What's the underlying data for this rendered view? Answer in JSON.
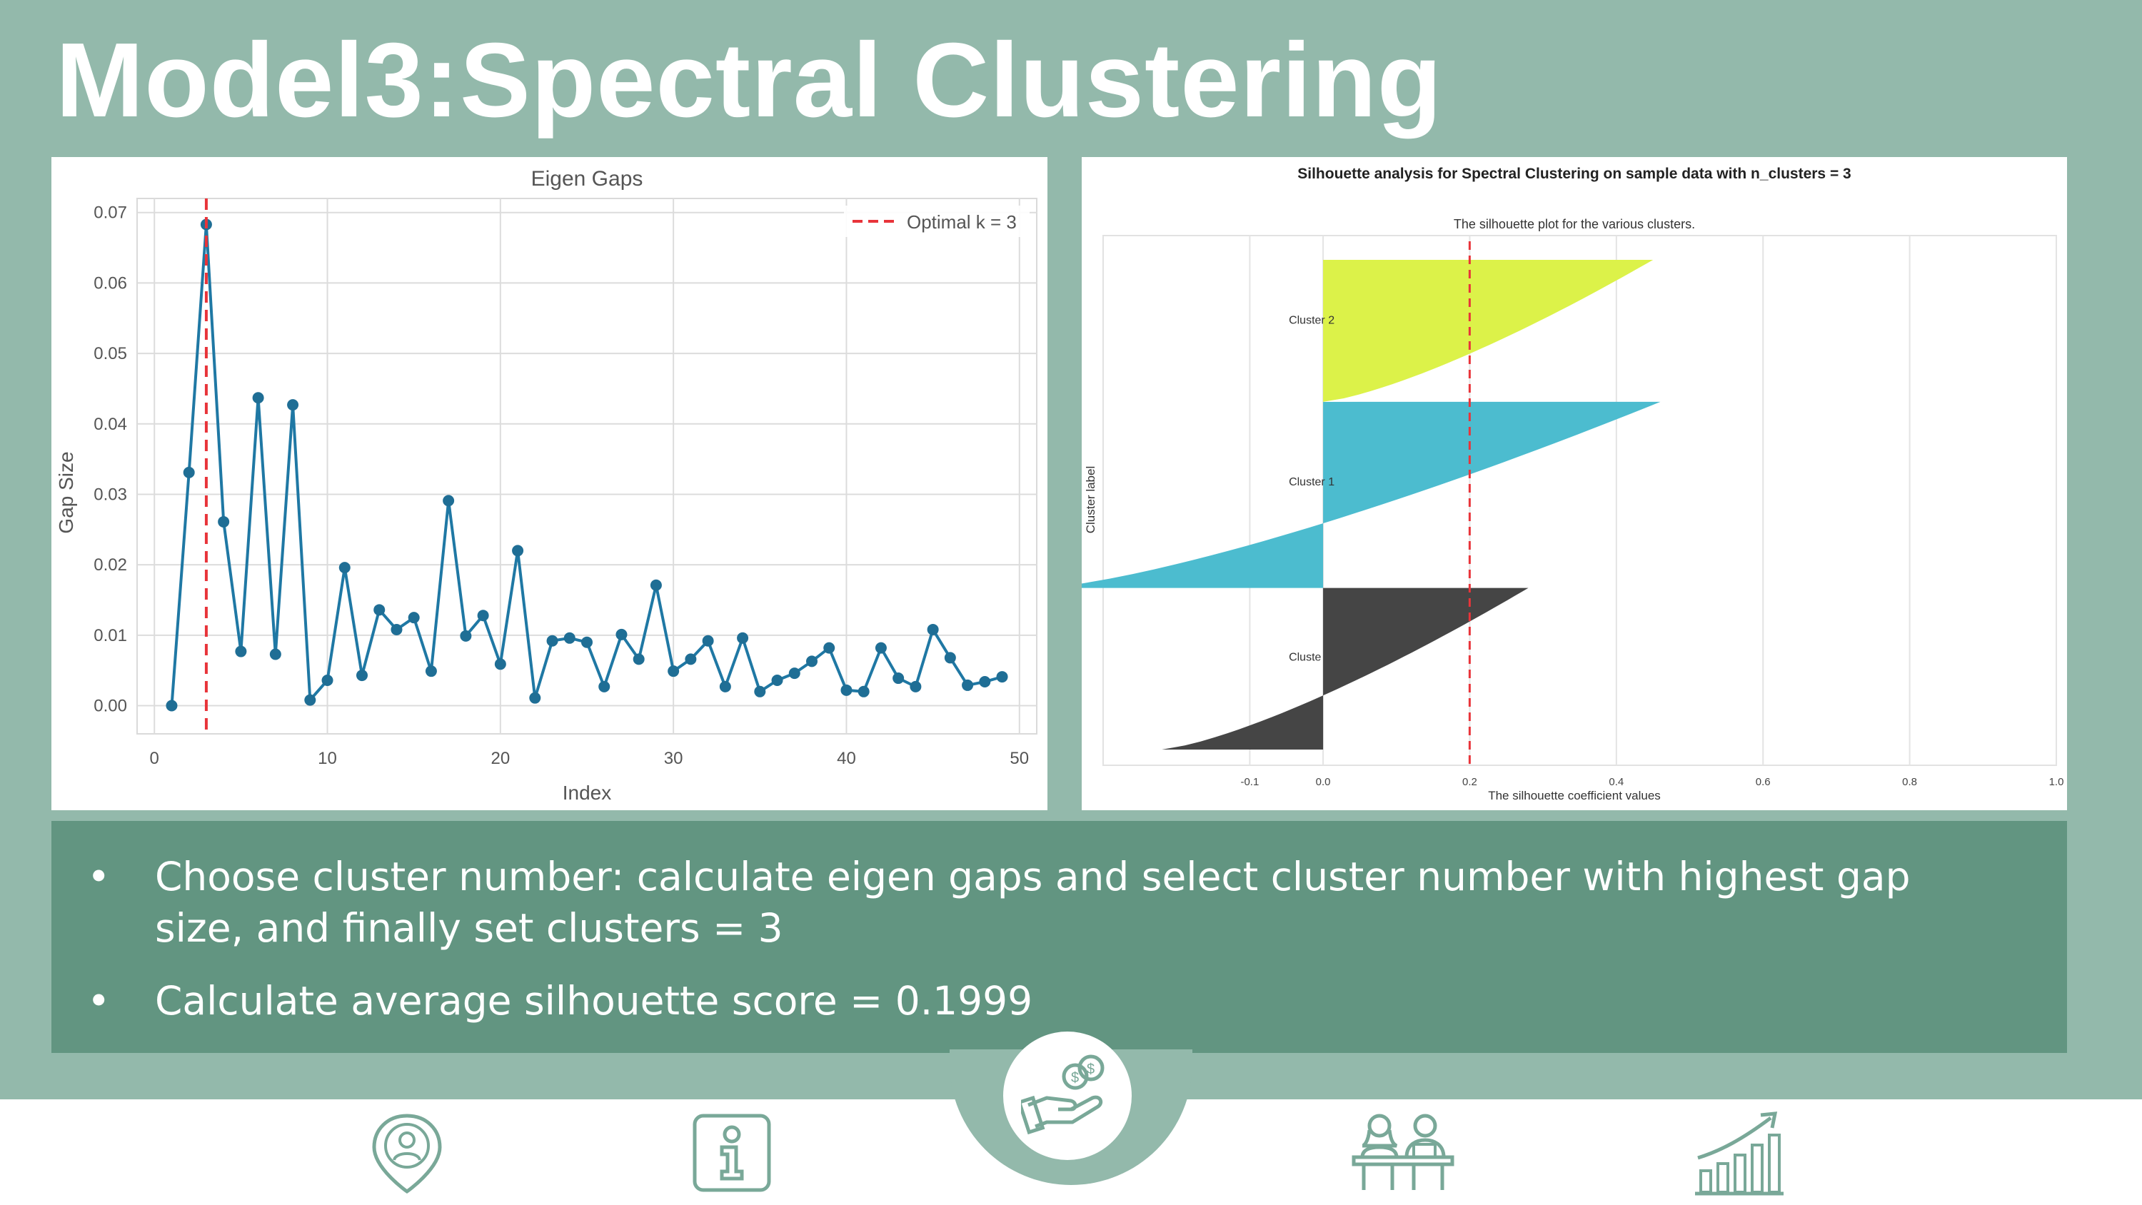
{
  "slide": {
    "title": "Model3:Spectral Clustering"
  },
  "colors": {
    "background": "#93b9ab",
    "bullet_box": "#629581",
    "line_series": "#1f78a4",
    "optimal_line": "#e8343a",
    "cluster_0": "#454545",
    "cluster_1": "#4cbccf",
    "cluster_2": "#dcf249"
  },
  "bullets": [
    {
      "marker": "•",
      "text": "Choose cluster number: calculate eigen gaps and select cluster number with highest gap size, and finally set clusters = 3"
    },
    {
      "marker": "•",
      "text": "Calculate average silhouette score = 0.1999"
    }
  ],
  "chart_data": [
    {
      "type": "line",
      "title": "Eigen Gaps",
      "xlabel": "Index",
      "ylabel": "Gap Size",
      "xlim": [
        -1,
        51
      ],
      "ylim": [
        -0.004,
        0.072
      ],
      "x_ticks": [
        0,
        10,
        20,
        30,
        40,
        50
      ],
      "y_ticks": [
        0.0,
        0.01,
        0.02,
        0.03,
        0.04,
        0.05,
        0.06,
        0.07
      ],
      "x_tick_labels": [
        "0",
        "10",
        "20",
        "30",
        "40",
        "50"
      ],
      "y_tick_labels": [
        "0.00",
        "0.01",
        "0.02",
        "0.03",
        "0.04",
        "0.05",
        "0.06",
        "0.07"
      ],
      "grid": true,
      "legend_position": "top-right",
      "legend": "Optimal k = 3",
      "optimal_k": 3,
      "x": [
        1,
        2,
        3,
        4,
        5,
        6,
        7,
        8,
        9,
        10,
        11,
        12,
        13,
        14,
        15,
        16,
        17,
        18,
        19,
        20,
        21,
        22,
        23,
        24,
        25,
        26,
        27,
        28,
        29,
        30,
        31,
        32,
        33,
        34,
        35,
        36,
        37,
        38,
        39,
        40,
        41,
        42,
        43,
        44,
        45,
        46,
        47,
        48,
        49
      ],
      "y": [
        0.0,
        0.0331,
        0.0683,
        0.0261,
        0.0077,
        0.0437,
        0.0073,
        0.0427,
        0.0008,
        0.0036,
        0.0196,
        0.0043,
        0.0136,
        0.0108,
        0.0125,
        0.0049,
        0.0291,
        0.0099,
        0.0128,
        0.0059,
        0.022,
        0.0011,
        0.0092,
        0.0096,
        0.009,
        0.0027,
        0.0101,
        0.0066,
        0.0171,
        0.0049,
        0.0066,
        0.0092,
        0.0027,
        0.0096,
        0.002,
        0.0036,
        0.0046,
        0.0063,
        0.0082,
        0.0022,
        0.002,
        0.0082,
        0.0039,
        0.0027,
        0.0108,
        0.0068,
        0.0029,
        0.0034,
        0.0041
      ]
    },
    {
      "type": "area",
      "title": "Silhouette analysis for Spectral Clustering on sample data with n_clusters = 3",
      "subtitle": "The silhouette plot for the various clusters.",
      "xlabel": "The silhouette coefficient values",
      "ylabel": "Cluster label",
      "xlim": [
        -0.3,
        1.0
      ],
      "x_ticks": [
        -0.1,
        0.0,
        0.2,
        0.4,
        0.6,
        0.8,
        1.0
      ],
      "x_tick_labels": [
        "-0.1",
        "0.0",
        "0.2",
        "0.4",
        "0.6",
        "0.8",
        "1.0"
      ],
      "average_silhouette": 0.1999,
      "grid": true,
      "clusters": [
        {
          "label": "Cluster 0",
          "visible_label": "Cluste",
          "min": -0.22,
          "max": 0.28,
          "fraction": 0.33
        },
        {
          "label": "Cluster 1",
          "visible_label": "Cluster 1",
          "min": -0.38,
          "max": 0.46,
          "fraction": 0.38
        },
        {
          "label": "Cluster 2",
          "visible_label": "Cluster 2",
          "min": 0.0,
          "max": 0.45,
          "fraction": 0.29
        }
      ]
    }
  ],
  "nav": {
    "items": [
      {
        "icon": "location-person-icon"
      },
      {
        "icon": "info-icon"
      },
      {
        "icon": "money-hand-icon",
        "active": true
      },
      {
        "icon": "meeting-people-icon"
      },
      {
        "icon": "growth-chart-icon"
      }
    ]
  }
}
